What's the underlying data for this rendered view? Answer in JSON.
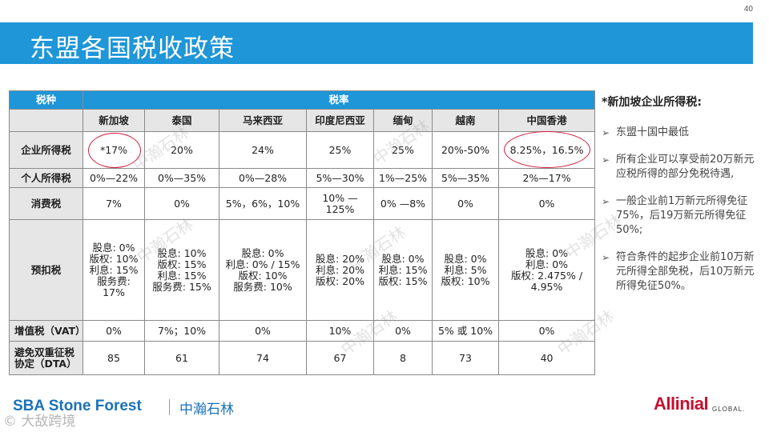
{
  "page_number": "40",
  "title": "东盟各国税收政策",
  "table": {
    "header_tax_type": "税种",
    "header_tax_rate": "税率",
    "countries": [
      "新加坡",
      "泰国",
      "马来西亚",
      "印度尼西亚",
      "缅甸",
      "越南",
      "中国香港"
    ],
    "rows": [
      {
        "label": "企业所得税",
        "cells": [
          "*17%",
          "20%",
          "24%",
          "25%",
          "25%",
          "20%-50%",
          "8.25%，16.5%"
        ]
      },
      {
        "label": "个人所得税",
        "cells": [
          "0%—22%",
          "0%—35%",
          "0%—28%",
          "5%—30%",
          "1%—25%",
          "5%—35%",
          "2%—17%"
        ]
      },
      {
        "label": "消费税",
        "cells": [
          "7%",
          "0%",
          "5%，6%，10%",
          "10% —\n125%",
          "0% —8%",
          "0%",
          "0%"
        ]
      },
      {
        "label": "预扣税",
        "cells": [
          "股息: 0%\n版权:  10%\n利息:  15%\n服务费:\n17%",
          "股息: 10%\n版权: 15%\n利息: 15%\n服务费: 15%",
          "股息: 0%\n利息: 0% / 15%\n版权: 10%\n服务费: 10%",
          "股息: 20%\n利息: 20%\n版权: 20%",
          "股息: 0%\n利息: 15%\n版权: 15%",
          "股息: 0%\n利息: 5%\n版权: 10%",
          "股息: 0%\n利息: 0%\n版权: 2.475% /\n4.95%"
        ]
      },
      {
        "label": "增值税（VAT）",
        "cells": [
          "0%",
          "7%；10%",
          "0%",
          "10%",
          "0%",
          "5% 或 10%",
          "0%"
        ]
      },
      {
        "label": "避免双重征税\n协定（DTA）",
        "cells": [
          "85",
          "61",
          "74",
          "67",
          "8",
          "73",
          "40"
        ]
      }
    ]
  },
  "side": {
    "title": "*新加坡企业所得税:",
    "bullets": [
      "东盟十国中最低",
      "所有企业可以享受前20万新元应税所得的部分免税待遇,",
      "一般企业前1万新元所得免征75%，后19万新元所得免征50%;",
      "符合条件的起步企业前10万新元所得全部免税，后10万新元所得免征50%。"
    ],
    "arrow_icon": "chevron-right-icon"
  },
  "watermark_text": "中瀚石林",
  "footer": {
    "logo_text": "SBA Stone Forest",
    "logo_cn": "中瀚石林",
    "corner_watermark": "©  大敌跨境",
    "partner_logo": "Allinial",
    "partner_suffix": "GLOBAL."
  },
  "colors": {
    "accent": "#1e96d8",
    "header_gray": "#e6e6e6",
    "circle_red": "#d21f3c",
    "brand_blue": "#1b72b8",
    "partner_red": "#c8102e"
  }
}
